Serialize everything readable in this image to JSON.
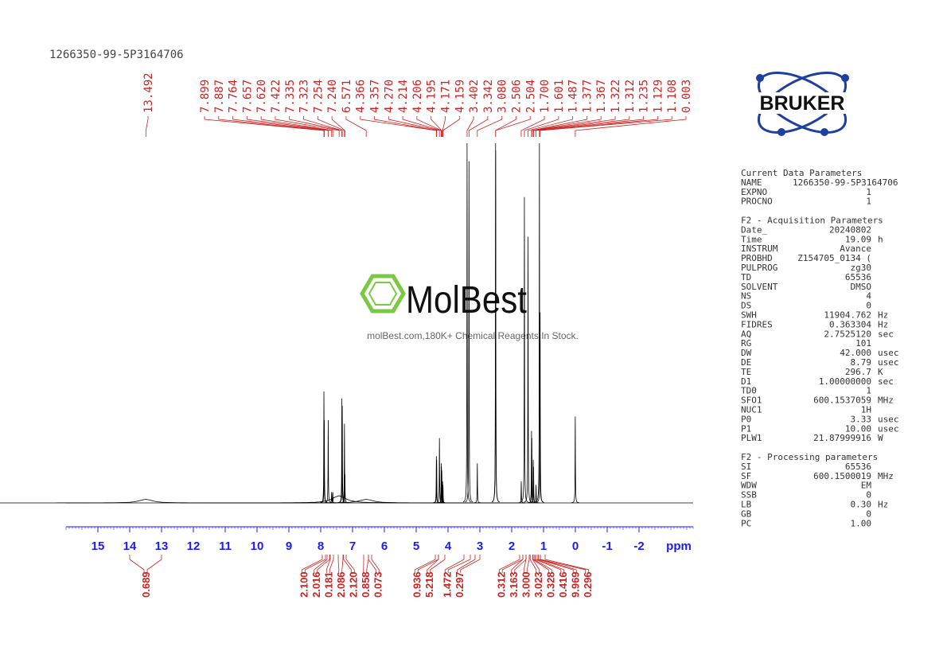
{
  "chart_data": {
    "type": "nmr",
    "title": "1266350-99-5P3164706",
    "x_label": "ppm",
    "xlim": [
      16,
      -3.7
    ],
    "xticks": [
      15,
      14,
      13,
      12,
      11,
      10,
      9,
      8,
      7,
      6,
      5,
      4,
      3,
      2,
      1,
      0,
      -1,
      -2
    ],
    "color": "#000000",
    "annotation_color": "#cc2222",
    "axis_color": "#1a1aff",
    "peaks": [
      13.492,
      7.899,
      7.887,
      7.764,
      7.657,
      7.62,
      7.422,
      7.335,
      7.323,
      7.254,
      7.24,
      6.571,
      4.366,
      4.357,
      4.27,
      4.214,
      4.206,
      4.195,
      4.171,
      4.159,
      3.402,
      3.342,
      3.08,
      2.506,
      2.504,
      1.7,
      1.601,
      1.487,
      1.377,
      1.367,
      1.322,
      1.312,
      1.235,
      1.129,
      1.108,
      0.003
    ],
    "peak_labels": [
      "13.492",
      "7.899",
      "7.887",
      "7.764",
      "7.657",
      "7.620",
      "7.422",
      "7.335",
      "7.323",
      "7.254",
      "7.240",
      "6.571",
      "4.366",
      "4.357",
      "4.270",
      "4.214",
      "4.206",
      "4.195",
      "4.171",
      "4.159",
      "3.402",
      "3.342",
      "3.080",
      "2.506",
      "2.504",
      "1.700",
      "1.601",
      "1.487",
      "1.377",
      "1.367",
      "1.322",
      "1.312",
      "1.235",
      "1.129",
      "1.108",
      "0.003"
    ],
    "peak_heights": [
      1,
      31,
      23,
      23,
      3,
      3,
      2,
      29,
      27,
      22,
      8,
      1,
      13,
      12,
      18,
      11,
      10,
      9,
      6,
      5,
      100,
      95,
      11,
      100,
      98,
      6,
      85,
      74,
      20,
      18,
      12,
      10,
      5,
      100,
      53,
      24
    ],
    "integral_ranges": [
      [
        14.0,
        13.0
      ],
      [
        7.95,
        7.85
      ],
      [
        7.8,
        7.72
      ],
      [
        7.7,
        7.6
      ],
      [
        7.45,
        7.3
      ],
      [
        7.28,
        7.2
      ],
      [
        6.65,
        6.5
      ],
      [
        6.5,
        6.4
      ],
      [
        4.4,
        4.3
      ],
      [
        4.3,
        4.1
      ],
      [
        3.5,
        3.3
      ],
      [
        3.15,
        3.0
      ],
      [
        1.75,
        1.65
      ],
      [
        1.65,
        1.55
      ],
      [
        1.55,
        1.45
      ],
      [
        1.42,
        1.34
      ],
      [
        1.34,
        1.3
      ],
      [
        1.26,
        1.2
      ],
      [
        1.16,
        1.1
      ],
      [
        1.1,
        0.95
      ]
    ],
    "integrals": [
      0.689,
      2.1,
      2.016,
      0.181,
      2.086,
      2.12,
      0.858,
      0.073,
      0.936,
      5.218,
      1.472,
      0.297,
      0.312,
      3.163,
      3.0,
      3.023,
      0.328,
      0.416,
      9.969,
      0.296
    ],
    "integral_labels": [
      "0.689",
      "2.100",
      "2.016",
      "0.181",
      "2.086",
      "2.120",
      "0.858",
      "0.073",
      "0.936",
      "5.218",
      "1.472",
      "0.297",
      "0.312",
      "3.163",
      "3.000",
      "3.023",
      "0.328",
      "0.416",
      "9.969",
      "0.296"
    ]
  },
  "logos": {
    "bruker": "BRUKER",
    "molbest": "MolBest",
    "molbest_tagline": "molBest.com,180K+ Chemical Reagents In Stock."
  },
  "parameters": [
    {
      "title": "Current Data Parameters",
      "rows": [
        [
          "NAME",
          "1266350-99-5P3164706"
        ],
        [
          "EXPNO",
          "1"
        ],
        [
          "PROCNO",
          "1"
        ]
      ]
    },
    {
      "title": "F2 - Acquisition Parameters",
      "rows": [
        [
          "Date_",
          "20240802"
        ],
        [
          "Time",
          "19.09",
          "h"
        ],
        [
          "INSTRUM",
          "Avance"
        ],
        [
          "PROBHD",
          "Z154705_0134 ("
        ],
        [
          "PULPROG",
          "zg30"
        ],
        [
          "TD",
          "65536"
        ],
        [
          "SOLVENT",
          "DMSO"
        ],
        [
          "NS",
          "4"
        ],
        [
          "DS",
          "0"
        ],
        [
          "SWH",
          "11904.762",
          "Hz"
        ],
        [
          "FIDRES",
          "0.363304",
          "Hz"
        ],
        [
          "AQ",
          "2.7525120",
          "sec"
        ],
        [
          "RG",
          "101"
        ],
        [
          "DW",
          "42.000",
          "usec"
        ],
        [
          "DE",
          "8.79",
          "usec"
        ],
        [
          "TE",
          "296.7",
          "K"
        ],
        [
          "D1",
          "1.00000000",
          "sec"
        ],
        [
          "TD0",
          "1"
        ],
        [
          "SFO1",
          "600.1537059",
          "MHz"
        ],
        [
          "NUC1",
          "1H"
        ],
        [
          "P0",
          "3.33",
          "usec"
        ],
        [
          "P1",
          "10.00",
          "usec"
        ],
        [
          "PLW1",
          "21.87999916",
          "W"
        ]
      ]
    },
    {
      "title": "F2 - Processing parameters",
      "rows": [
        [
          "SI",
          "65536"
        ],
        [
          "SF",
          "600.1500019",
          "MHz"
        ],
        [
          "WDW",
          "EM"
        ],
        [
          "SSB",
          "0"
        ],
        [
          "LB",
          "0.30",
          "Hz"
        ],
        [
          "GB",
          "0"
        ],
        [
          "PC",
          "1.00"
        ]
      ]
    }
  ]
}
